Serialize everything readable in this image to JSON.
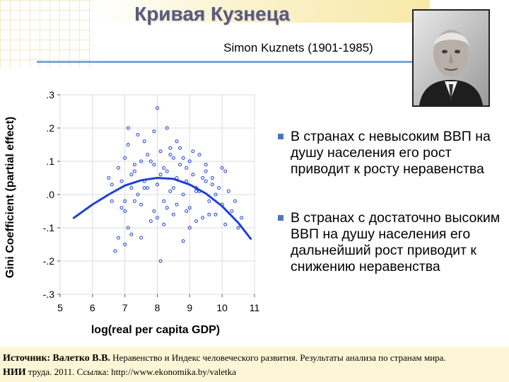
{
  "slide": {
    "title": "Кривая Кузнеца",
    "subtitle": "Simon Kuznets (1901-1985)"
  },
  "bullets": [
    "В странах с невысоким ВВП на душу населения его рост приводит к росту неравенства",
    "В странах с достаточно высоким ВВП на душу населения его дальнейший рост приводит к снижению неравенства"
  ],
  "source": {
    "label": "Источник:",
    "author": "Валетко В.В.",
    "line1_rest": "Неравенство и Индекс человеческого развития. Результаты анализа по странам мира.",
    "org": "НИИ",
    "line2_rest": "труда. 2011. Ссылка: http://www.ekonomika.by/valetka"
  },
  "colors": {
    "curve": "#1f3fd6",
    "points": "#1f3fd6",
    "accent": "#4a76c0"
  },
  "chart_data": {
    "type": "scatter",
    "xlabel": "log(real per capita GDP)",
    "ylabel": "Gini Coefficient (partial effect)",
    "xlim": [
      5,
      11
    ],
    "ylim": [
      -0.3,
      0.3
    ],
    "x_ticks": [
      "5",
      "6",
      "7",
      "8",
      "9",
      "10",
      "11"
    ],
    "y_ticks": [
      ".3",
      ".2",
      ".1",
      ".0",
      "-.1",
      "-.2",
      "-.3"
    ],
    "grid": true,
    "fitted_curve": {
      "x": [
        5.4,
        6.0,
        6.5,
        7.0,
        7.5,
        8.0,
        8.5,
        9.0,
        9.5,
        10.0,
        10.5,
        10.9
      ],
      "y": [
        -0.072,
        -0.03,
        0.0,
        0.027,
        0.043,
        0.05,
        0.047,
        0.03,
        0.003,
        -0.035,
        -0.085,
        -0.135
      ]
    },
    "points": {
      "x": [
        6.5,
        6.6,
        6.8,
        7.0,
        7.0,
        7.1,
        7.2,
        7.2,
        7.3,
        7.4,
        7.5,
        7.5,
        7.6,
        7.7,
        7.8,
        7.9,
        8.0,
        8.0,
        8.1,
        8.2,
        8.3,
        8.3,
        8.4,
        8.5,
        8.5,
        8.6,
        8.7,
        8.8,
        8.9,
        9.0,
        9.0,
        9.1,
        9.2,
        9.3,
        9.4,
        9.5,
        9.6,
        9.7,
        9.8,
        10.0,
        10.1,
        10.3,
        10.5,
        6.9,
        7.1,
        7.3,
        7.6,
        7.9,
        8.1,
        8.4,
        8.6,
        8.9,
        9.2,
        9.5,
        9.9,
        7.0,
        7.4,
        7.8,
        8.2,
        8.7,
        9.1,
        9.6,
        10.2,
        6.8,
        7.2,
        7.7,
        8.3,
        8.8,
        9.4,
        10.0,
        6.7,
        7.5,
        8.0,
        8.5,
        9.0,
        9.8,
        10.4,
        7.1,
        7.9,
        8.6,
        9.3,
        10.1,
        6.9,
        8.2,
        8.9,
        9.7,
        7.3,
        8.4,
        9.5,
        6.6,
        7.0,
        7.6,
        8.1,
        8.8,
        9.2,
        10.6
      ],
      "y": [
        0.05,
        -0.02,
        0.08,
        0.11,
        -0.05,
        0.15,
        0.02,
        -0.12,
        0.07,
        0.18,
        -0.03,
        0.1,
        0.04,
        0.12,
        -0.08,
        0.09,
        0.26,
        0.03,
        0.13,
        -0.02,
        0.07,
        0.2,
        0.01,
        0.11,
        -0.06,
        0.05,
        0.14,
        0.0,
        0.08,
        0.1,
        -0.04,
        0.06,
        0.02,
        0.12,
        -0.07,
        0.04,
        -0.02,
        0.03,
        0.0,
        -0.03,
        -0.09,
        -0.05,
        -0.1,
        0.04,
        -0.1,
        0.09,
        0.16,
        -0.05,
        0.06,
        0.14,
        -0.03,
        0.04,
        -0.08,
        0.07,
        0.02,
        -0.15,
        0.0,
        0.1,
        -0.09,
        0.09,
        0.13,
        -0.06,
        0.01,
        -0.13,
        0.06,
        0.02,
        -0.04,
        0.11,
        0.05,
        0.08,
        -0.17,
        -0.13,
        -0.07,
        0.02,
        -0.1,
        -0.06,
        -0.02,
        0.2,
        0.19,
        0.16,
        0.01,
        0.07,
        -0.04,
        0.08,
        -0.05,
        0.05,
        -0.02,
        0.12,
        0.09,
        0.03,
        -0.02,
        0.02,
        -0.2,
        -0.14,
        0.01,
        -0.07
      ]
    }
  }
}
